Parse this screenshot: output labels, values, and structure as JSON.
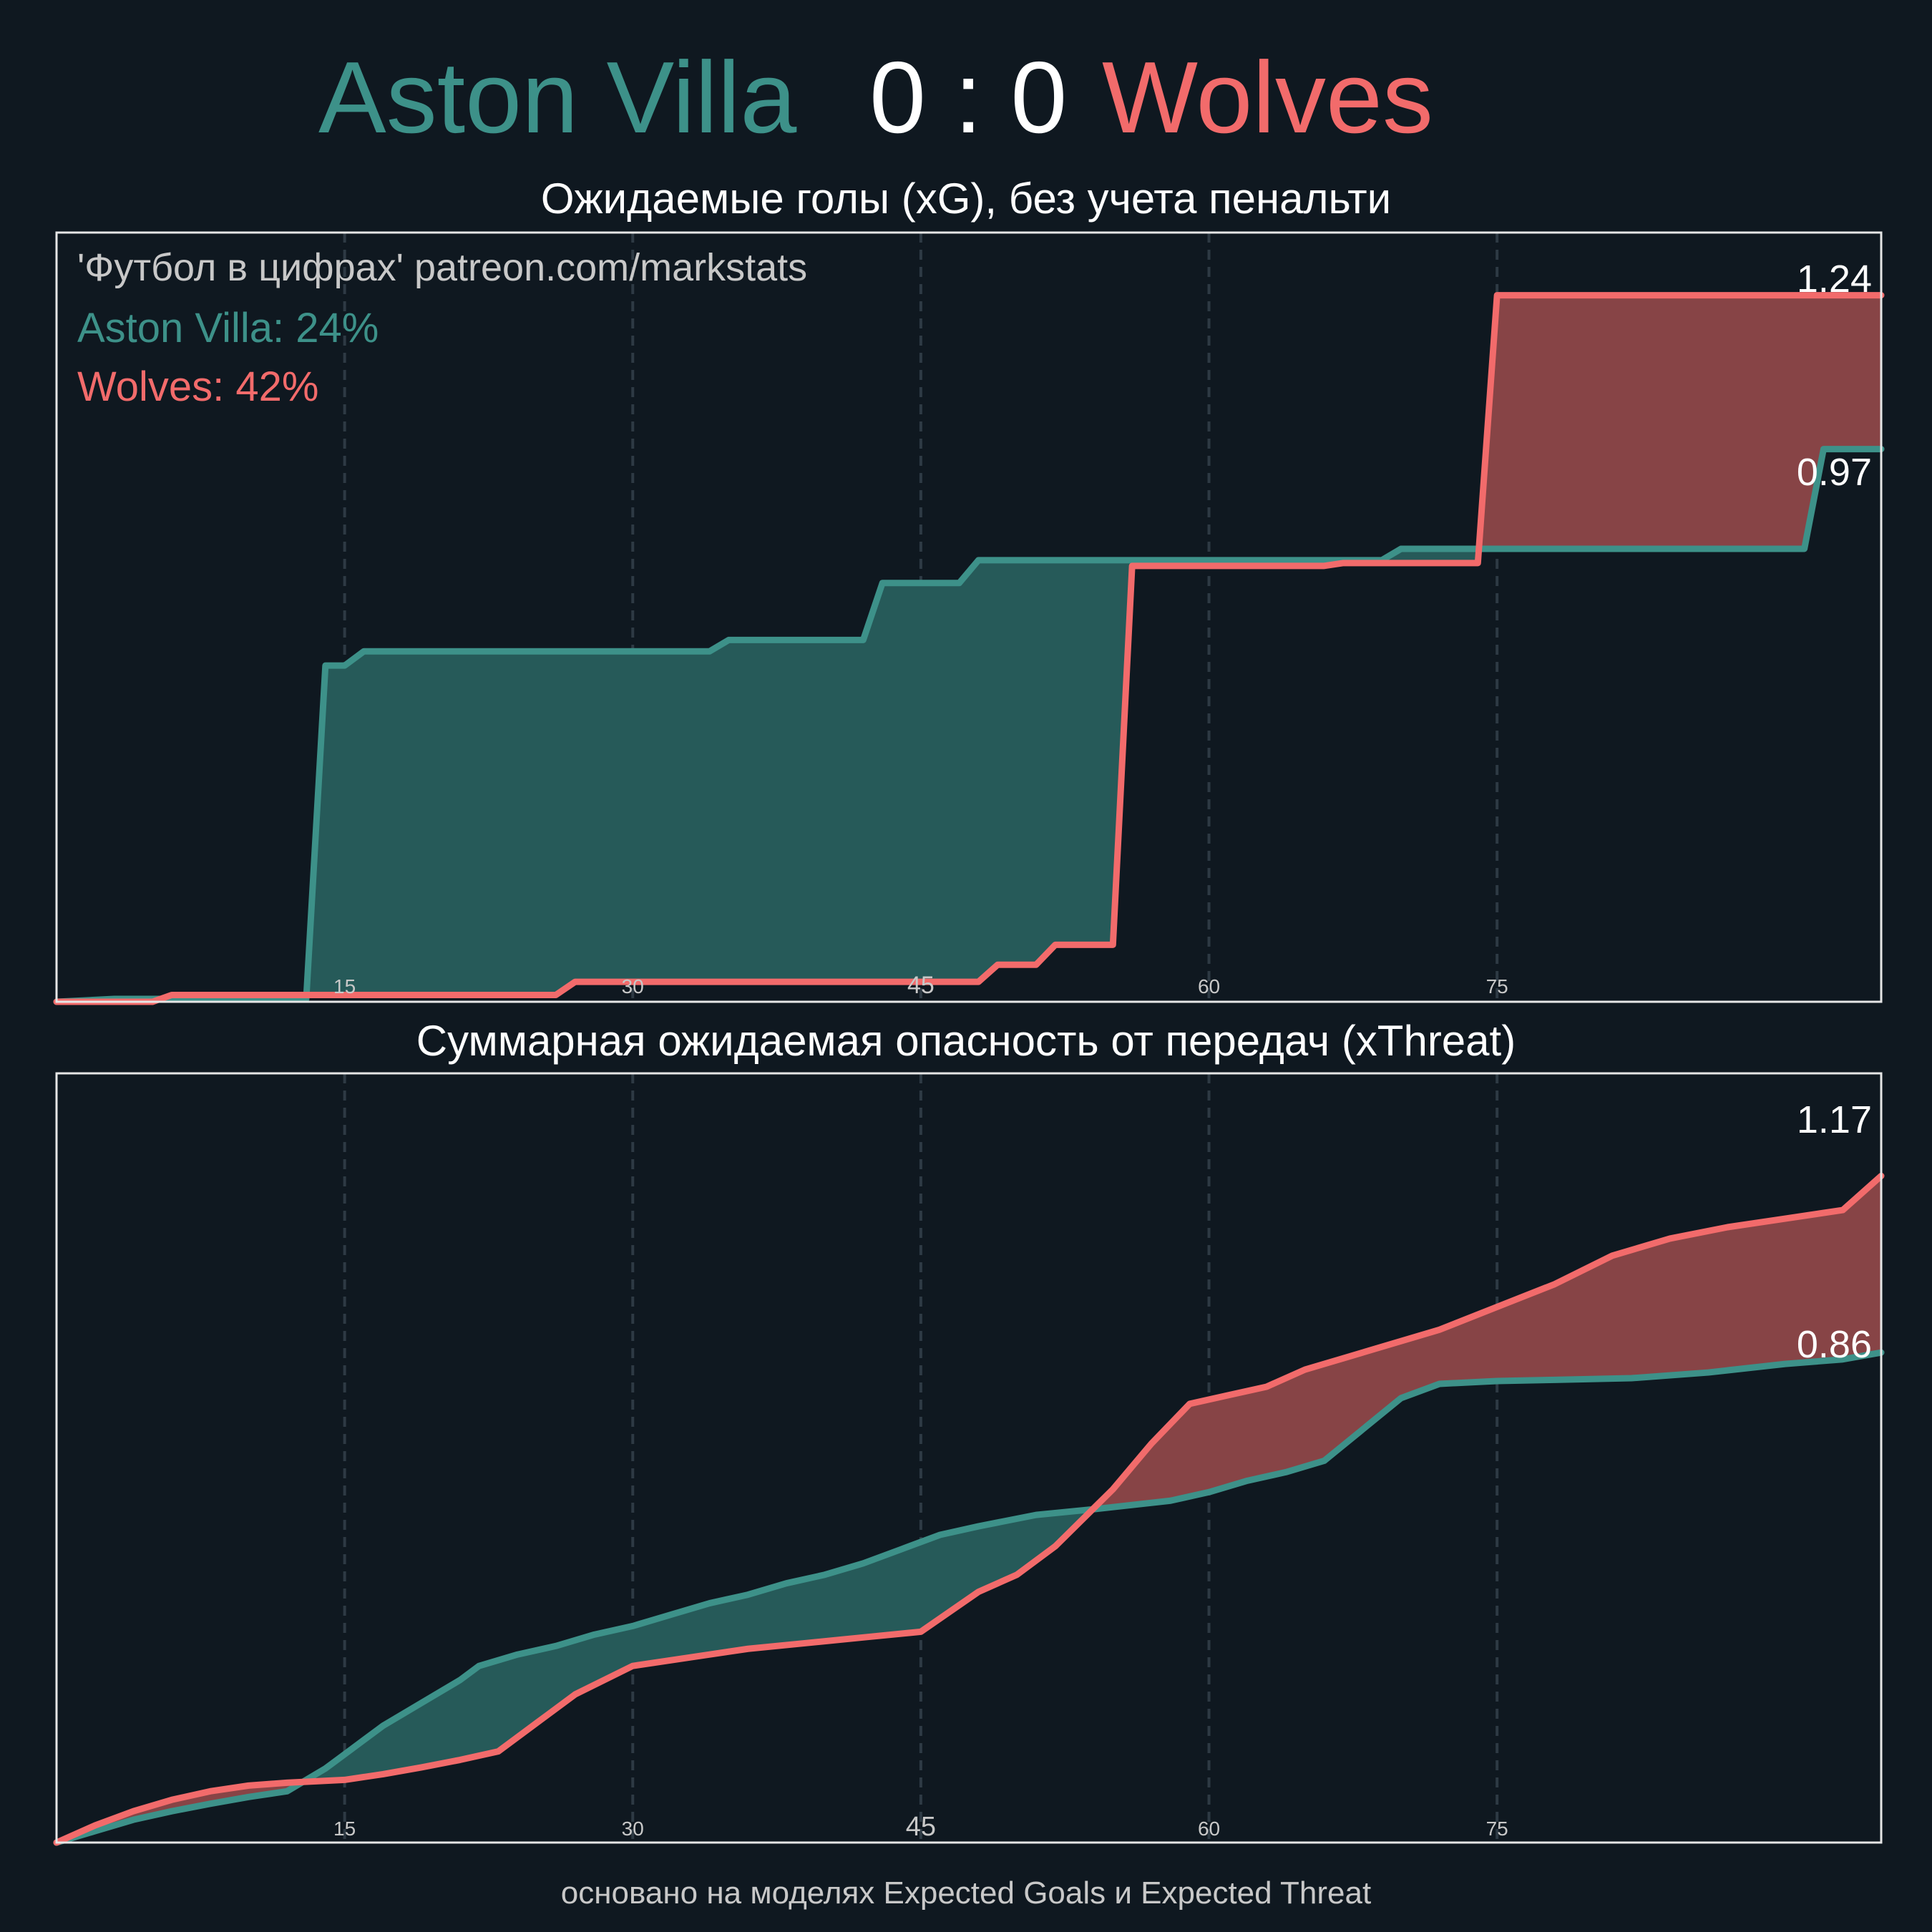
{
  "header": {
    "home_team": "Aston Villa",
    "score": "0 : 0",
    "away_team": "Wolves"
  },
  "colors": {
    "background": "#0f1820",
    "home": "#3d9189",
    "away": "#f26b6b",
    "home_fill": "#265a59",
    "away_fill": "#874446",
    "frame": "#e6e6e6",
    "grid": "#2e3a44",
    "tick_text": "#c8c8c8",
    "footer_text": "#c8c8c8",
    "value_text": "#ffffff"
  },
  "panels": {
    "xg": {
      "title": "Ожидаемые голы (xG), без учета пенальти",
      "watermark": "'Футбол в цифрах' patreon.com/markstats",
      "home_legend": "Aston Villa: 24%",
      "away_legend": "Wolves: 42%",
      "home_final_label": "0.97",
      "away_final_label": "1.24"
    },
    "xt": {
      "title": "Суммарная ожидаемая опасность от передач (xThreat)",
      "home_final_label": "0.86",
      "away_final_label": "1.17"
    }
  },
  "footer": "основано на моделях Expected Goals и Expected Threat",
  "chart_data": [
    {
      "type": "line",
      "title": "Ожидаемые голы (xG), без учета пенальти",
      "xlim": [
        0,
        95
      ],
      "ylim": [
        0,
        1.35
      ],
      "x_ticks": [
        "15",
        "30",
        "45",
        "60",
        "75"
      ],
      "x_tick_values": [
        15,
        30,
        45,
        60,
        75
      ],
      "grid": "vertical dashed",
      "step": true,
      "series": [
        {
          "name": "Aston Villa",
          "color": "#3d9189",
          "points": [
            [
              0,
              0
            ],
            [
              3,
              0.005
            ],
            [
              13,
              0.005
            ],
            [
              14,
              0.59
            ],
            [
              15,
              0.59
            ],
            [
              16,
              0.615
            ],
            [
              34,
              0.615
            ],
            [
              35,
              0.635
            ],
            [
              42,
              0.635
            ],
            [
              43,
              0.735
            ],
            [
              47,
              0.735
            ],
            [
              48,
              0.775
            ],
            [
              69,
              0.775
            ],
            [
              70,
              0.795
            ],
            [
              91,
              0.795
            ],
            [
              92,
              0.97
            ],
            [
              95,
              0.97
            ]
          ]
        },
        {
          "name": "Wolves",
          "color": "#f26b6b",
          "points": [
            [
              0,
              0
            ],
            [
              5,
              0
            ],
            [
              6,
              0.012
            ],
            [
              26,
              0.012
            ],
            [
              27,
              0.035
            ],
            [
              48,
              0.035
            ],
            [
              49,
              0.065
            ],
            [
              51,
              0.065
            ],
            [
              52,
              0.1
            ],
            [
              55,
              0.1
            ],
            [
              56,
              0.765
            ],
            [
              66,
              0.765
            ],
            [
              67,
              0.77
            ],
            [
              74,
              0.77
            ],
            [
              75,
              1.24
            ],
            [
              95,
              1.24
            ]
          ]
        }
      ]
    },
    {
      "type": "line",
      "title": "Суммарная ожидаемая опасность от передач (xThreat)",
      "xlim": [
        0,
        95
      ],
      "ylim": [
        0,
        1.35
      ],
      "x_ticks": [
        "15",
        "30",
        "45",
        "60",
        "75"
      ],
      "x_tick_values": [
        15,
        30,
        45,
        60,
        75
      ],
      "grid": "vertical dashed",
      "step": false,
      "series": [
        {
          "name": "Aston Villa",
          "color": "#3d9189",
          "points": [
            [
              0,
              0
            ],
            [
              2,
              0.02
            ],
            [
              4,
              0.04
            ],
            [
              6,
              0.055
            ],
            [
              8,
              0.068
            ],
            [
              10,
              0.08
            ],
            [
              12,
              0.09
            ],
            [
              14,
              0.13
            ],
            [
              15,
              0.155
            ],
            [
              17,
              0.205
            ],
            [
              19,
              0.245
            ],
            [
              21,
              0.285
            ],
            [
              22,
              0.31
            ],
            [
              24,
              0.33
            ],
            [
              26,
              0.345
            ],
            [
              28,
              0.365
            ],
            [
              30,
              0.38
            ],
            [
              32,
              0.4
            ],
            [
              34,
              0.42
            ],
            [
              36,
              0.435
            ],
            [
              38,
              0.455
            ],
            [
              40,
              0.47
            ],
            [
              42,
              0.49
            ],
            [
              44,
              0.515
            ],
            [
              46,
              0.54
            ],
            [
              48,
              0.555
            ],
            [
              51,
              0.575
            ],
            [
              54,
              0.585
            ],
            [
              58,
              0.6
            ],
            [
              60,
              0.615
            ],
            [
              62,
              0.635
            ],
            [
              64,
              0.65
            ],
            [
              66,
              0.67
            ],
            [
              68,
              0.725
            ],
            [
              70,
              0.78
            ],
            [
              72,
              0.805
            ],
            [
              75,
              0.81
            ],
            [
              78,
              0.812
            ],
            [
              82,
              0.815
            ],
            [
              86,
              0.825
            ],
            [
              90,
              0.84
            ],
            [
              93,
              0.848
            ],
            [
              95,
              0.86
            ]
          ]
        },
        {
          "name": "Wolves",
          "color": "#f26b6b",
          "points": [
            [
              0,
              0
            ],
            [
              2,
              0.03
            ],
            [
              4,
              0.055
            ],
            [
              6,
              0.075
            ],
            [
              8,
              0.09
            ],
            [
              10,
              0.1
            ],
            [
              12,
              0.105
            ],
            [
              15,
              0.11
            ],
            [
              17,
              0.12
            ],
            [
              19,
              0.132
            ],
            [
              21,
              0.145
            ],
            [
              23,
              0.16
            ],
            [
              25,
              0.21
            ],
            [
              27,
              0.26
            ],
            [
              30,
              0.31
            ],
            [
              33,
              0.325
            ],
            [
              36,
              0.34
            ],
            [
              39,
              0.35
            ],
            [
              42,
              0.36
            ],
            [
              45,
              0.37
            ],
            [
              48,
              0.44
            ],
            [
              50,
              0.47
            ],
            [
              52,
              0.52
            ],
            [
              55,
              0.62
            ],
            [
              57,
              0.7
            ],
            [
              59,
              0.77
            ],
            [
              61,
              0.785
            ],
            [
              63,
              0.8
            ],
            [
              65,
              0.83
            ],
            [
              67,
              0.85
            ],
            [
              69,
              0.87
            ],
            [
              72,
              0.9
            ],
            [
              75,
              0.94
            ],
            [
              78,
              0.98
            ],
            [
              81,
              1.03
            ],
            [
              84,
              1.06
            ],
            [
              87,
              1.08
            ],
            [
              90,
              1.095
            ],
            [
              93,
              1.11
            ],
            [
              95,
              1.17
            ]
          ]
        }
      ]
    }
  ]
}
